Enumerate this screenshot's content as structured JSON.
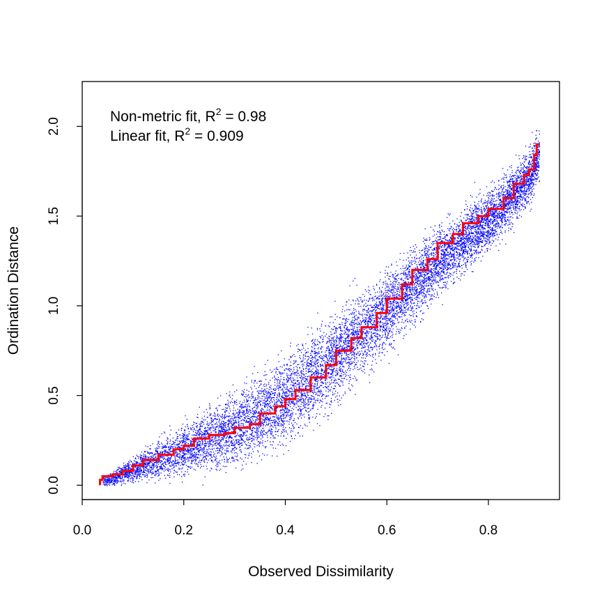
{
  "chart_data": {
    "type": "scatter",
    "title": "",
    "xlabel": "Observed Dissimilarity",
    "ylabel": "Ordination Distance",
    "xlim": [
      0.0,
      0.94
    ],
    "ylim": [
      -0.08,
      2.25
    ],
    "xticks": [
      0.0,
      0.2,
      0.4,
      0.6,
      0.8
    ],
    "xtick_labels": [
      "0.0",
      "0.2",
      "0.4",
      "0.6",
      "0.8"
    ],
    "yticks": [
      0.0,
      0.5,
      1.0,
      1.5,
      2.0
    ],
    "ytick_labels": [
      "0.0",
      "0.5",
      "1.0",
      "1.5",
      "2.0"
    ],
    "grid": false,
    "annotations": [
      {
        "prefix": "Non-metric fit, R",
        "sup": "2",
        "suffix": " = 0.98"
      },
      {
        "prefix": "Linear fit, R",
        "sup": "2",
        "suffix": " = 0.909"
      }
    ],
    "series": [
      {
        "type": "scatter",
        "color": "#0000ff",
        "x_range": [
          0.04,
          0.9
        ],
        "density_note": "dense cloud",
        "envelope": {
          "x": [
            0.04,
            0.1,
            0.2,
            0.3,
            0.4,
            0.5,
            0.6,
            0.7,
            0.8,
            0.88,
            0.9
          ],
          "center": [
            0.02,
            0.09,
            0.2,
            0.32,
            0.48,
            0.72,
            0.98,
            1.25,
            1.48,
            1.72,
            1.85
          ],
          "spread": [
            0.02,
            0.06,
            0.12,
            0.17,
            0.2,
            0.2,
            0.18,
            0.16,
            0.14,
            0.14,
            0.12
          ]
        }
      },
      {
        "type": "step",
        "color": "#ff0000",
        "points": [
          [
            0.035,
            0.0
          ],
          [
            0.04,
            0.03
          ],
          [
            0.06,
            0.05
          ],
          [
            0.08,
            0.06
          ],
          [
            0.1,
            0.08
          ],
          [
            0.12,
            0.11
          ],
          [
            0.15,
            0.14
          ],
          [
            0.18,
            0.17
          ],
          [
            0.2,
            0.2
          ],
          [
            0.22,
            0.22
          ],
          [
            0.25,
            0.26
          ],
          [
            0.28,
            0.28
          ],
          [
            0.3,
            0.29
          ],
          [
            0.33,
            0.32
          ],
          [
            0.35,
            0.34
          ],
          [
            0.38,
            0.4
          ],
          [
            0.4,
            0.44
          ],
          [
            0.42,
            0.48
          ],
          [
            0.45,
            0.53
          ],
          [
            0.48,
            0.6
          ],
          [
            0.5,
            0.67
          ],
          [
            0.53,
            0.75
          ],
          [
            0.55,
            0.82
          ],
          [
            0.58,
            0.88
          ],
          [
            0.6,
            0.96
          ],
          [
            0.63,
            1.04
          ],
          [
            0.65,
            1.12
          ],
          [
            0.68,
            1.2
          ],
          [
            0.7,
            1.26
          ],
          [
            0.73,
            1.35
          ],
          [
            0.75,
            1.4
          ],
          [
            0.78,
            1.46
          ],
          [
            0.8,
            1.5
          ],
          [
            0.83,
            1.54
          ],
          [
            0.85,
            1.6
          ],
          [
            0.87,
            1.68
          ],
          [
            0.88,
            1.73
          ],
          [
            0.89,
            1.76
          ],
          [
            0.895,
            1.84
          ],
          [
            0.9,
            1.9
          ]
        ]
      }
    ]
  }
}
